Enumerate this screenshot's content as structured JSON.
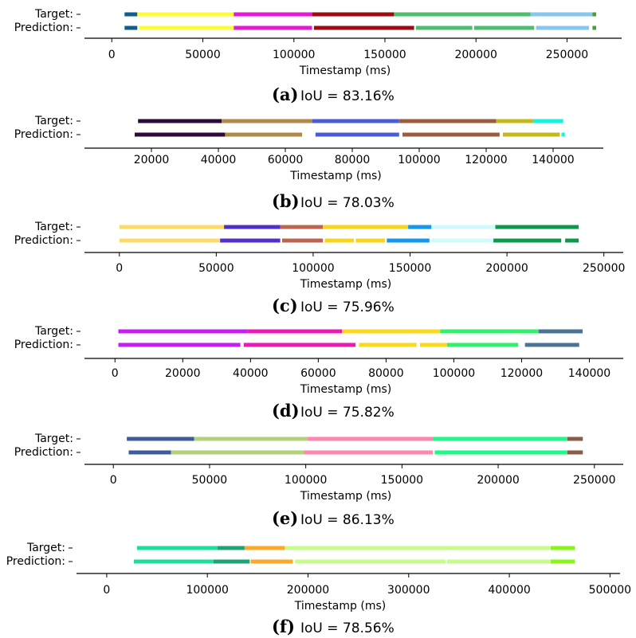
{
  "chart_data": [
    {
      "type": "bar",
      "subtype": "segmented-timeline",
      "rows": [
        "Target:",
        "Prediction:"
      ],
      "xlabel": "Timestamp (ms)",
      "xlim": [
        -15000,
        280000
      ],
      "ticks": [
        0,
        50000,
        100000,
        150000,
        200000,
        250000
      ],
      "caption_letter": "(a)",
      "caption_text": "IoU = 83.16%",
      "target": [
        {
          "start": 7000,
          "end": 14000,
          "color": "#0f5e8e"
        },
        {
          "start": 14000,
          "end": 67000,
          "color": "#fbfb39"
        },
        {
          "start": 67000,
          "end": 110000,
          "color": "#e21ad2"
        },
        {
          "start": 110000,
          "end": 155000,
          "color": "#9a0b12"
        },
        {
          "start": 155000,
          "end": 230000,
          "color": "#4dbe6d"
        },
        {
          "start": 230000,
          "end": 264000,
          "color": "#86c7f0"
        },
        {
          "start": 264000,
          "end": 266000,
          "color": "#4e9e2c"
        }
      ],
      "prediction": [
        {
          "start": 7000,
          "end": 14000,
          "color": "#0f5e8e"
        },
        {
          "start": 15000,
          "end": 67000,
          "color": "#fbfb39"
        },
        {
          "start": 67000,
          "end": 110000,
          "color": "#e21ad2"
        },
        {
          "start": 111000,
          "end": 166000,
          "color": "#9a0b12"
        },
        {
          "start": 167000,
          "end": 198000,
          "color": "#4dbe6d"
        },
        {
          "start": 199000,
          "end": 232000,
          "color": "#4dbe6d"
        },
        {
          "start": 233000,
          "end": 262000,
          "color": "#86c7f0"
        },
        {
          "start": 264000,
          "end": 266000,
          "color": "#4e9e2c"
        }
      ]
    },
    {
      "type": "bar",
      "subtype": "segmented-timeline",
      "rows": [
        "Target:",
        "Prediction:"
      ],
      "xlabel": "Timestamp (ms)",
      "xlim": [
        0,
        155000
      ],
      "ticks": [
        20000,
        40000,
        60000,
        80000,
        100000,
        120000,
        140000
      ],
      "caption_letter": "(b)",
      "caption_text": "IoU = 78.03%",
      "target": [
        {
          "start": 16000,
          "end": 41000,
          "color": "#2e0a3c"
        },
        {
          "start": 41000,
          "end": 68000,
          "color": "#b18a48"
        },
        {
          "start": 68000,
          "end": 94000,
          "color": "#4b5bd6"
        },
        {
          "start": 94000,
          "end": 123000,
          "color": "#9c5d3e"
        },
        {
          "start": 123000,
          "end": 134000,
          "color": "#c4b81b"
        },
        {
          "start": 134000,
          "end": 143000,
          "color": "#12f4df"
        }
      ],
      "prediction": [
        {
          "start": 15000,
          "end": 42000,
          "color": "#2e0a3c"
        },
        {
          "start": 42000,
          "end": 65000,
          "color": "#b18a48"
        },
        {
          "start": 69000,
          "end": 94000,
          "color": "#4b5bd6"
        },
        {
          "start": 95000,
          "end": 124000,
          "color": "#9c5d3e"
        },
        {
          "start": 125000,
          "end": 142000,
          "color": "#c4b81b"
        },
        {
          "start": 142500,
          "end": 143500,
          "color": "#12f4df"
        }
      ]
    },
    {
      "type": "bar",
      "subtype": "segmented-timeline",
      "rows": [
        "Target:",
        "Prediction:"
      ],
      "xlabel": "Timestamp (ms)",
      "xlim": [
        -18000,
        260000
      ],
      "ticks": [
        0,
        50000,
        100000,
        150000,
        200000,
        250000
      ],
      "caption_letter": "(c)",
      "caption_text": "IoU = 75.96%",
      "target": [
        {
          "start": 0,
          "end": 54000,
          "color": "#fbdc6a"
        },
        {
          "start": 54000,
          "end": 83000,
          "color": "#5130c8"
        },
        {
          "start": 83000,
          "end": 105000,
          "color": "#bd6451"
        },
        {
          "start": 105000,
          "end": 149000,
          "color": "#f7d51f"
        },
        {
          "start": 149000,
          "end": 161000,
          "color": "#1597ed"
        },
        {
          "start": 161000,
          "end": 194000,
          "color": "#d1fafc"
        },
        {
          "start": 194000,
          "end": 237000,
          "color": "#0d994c"
        }
      ],
      "prediction": [
        {
          "start": 0,
          "end": 52000,
          "color": "#fbdc6a"
        },
        {
          "start": 52000,
          "end": 83000,
          "color": "#5130c8"
        },
        {
          "start": 84000,
          "end": 105000,
          "color": "#bd6451"
        },
        {
          "start": 106000,
          "end": 121000,
          "color": "#f7d51f"
        },
        {
          "start": 122000,
          "end": 137000,
          "color": "#f7d51f"
        },
        {
          "start": 138000,
          "end": 160000,
          "color": "#1597ed"
        },
        {
          "start": 161000,
          "end": 193000,
          "color": "#d1fafc"
        },
        {
          "start": 193000,
          "end": 228000,
          "color": "#0d994c"
        },
        {
          "start": 230000,
          "end": 237000,
          "color": "#0d994c"
        }
      ]
    },
    {
      "type": "bar",
      "subtype": "segmented-timeline",
      "rows": [
        "Target:",
        "Prediction:"
      ],
      "xlabel": "Timestamp (ms)",
      "xlim": [
        -9000,
        150000
      ],
      "ticks": [
        0,
        20000,
        40000,
        60000,
        80000,
        100000,
        120000,
        140000
      ],
      "caption_letter": "(d)",
      "caption_text": "IoU = 75.82%",
      "target": [
        {
          "start": 1000,
          "end": 39000,
          "color": "#c41df6"
        },
        {
          "start": 39000,
          "end": 67000,
          "color": "#ea1ab4"
        },
        {
          "start": 67000,
          "end": 96000,
          "color": "#fad91d"
        },
        {
          "start": 96000,
          "end": 125000,
          "color": "#31f06d"
        },
        {
          "start": 125000,
          "end": 138000,
          "color": "#4a7396"
        }
      ],
      "prediction": [
        {
          "start": 1000,
          "end": 37000,
          "color": "#c41df6"
        },
        {
          "start": 38000,
          "end": 71000,
          "color": "#ea1ab4"
        },
        {
          "start": 72000,
          "end": 89000,
          "color": "#fad91d"
        },
        {
          "start": 90000,
          "end": 98000,
          "color": "#fad91d"
        },
        {
          "start": 98000,
          "end": 119000,
          "color": "#31f06d"
        },
        {
          "start": 121000,
          "end": 137000,
          "color": "#4a7396"
        }
      ]
    },
    {
      "type": "bar",
      "subtype": "segmented-timeline",
      "rows": [
        "Target:",
        "Prediction:"
      ],
      "xlabel": "Timestamp (ms)",
      "xlim": [
        -15000,
        265000
      ],
      "ticks": [
        0,
        50000,
        100000,
        150000,
        200000,
        250000
      ],
      "caption_letter": "(e)",
      "caption_text": "IoU = 86.13%",
      "target": [
        {
          "start": 7000,
          "end": 42000,
          "color": "#3e5d98"
        },
        {
          "start": 42000,
          "end": 101000,
          "color": "#b2d27a"
        },
        {
          "start": 101000,
          "end": 166000,
          "color": "#fc89ac"
        },
        {
          "start": 166000,
          "end": 236000,
          "color": "#1dfb86"
        },
        {
          "start": 236000,
          "end": 244000,
          "color": "#8e5b48"
        }
      ],
      "prediction": [
        {
          "start": 8000,
          "end": 30000,
          "color": "#3e5d98"
        },
        {
          "start": 30000,
          "end": 99000,
          "color": "#b2d27a"
        },
        {
          "start": 99000,
          "end": 166000,
          "color": "#fc89ac"
        },
        {
          "start": 167000,
          "end": 236000,
          "color": "#1dfb86"
        },
        {
          "start": 236000,
          "end": 244000,
          "color": "#8e5b48"
        }
      ]
    },
    {
      "type": "bar",
      "subtype": "segmented-timeline",
      "rows": [
        "Target:",
        "Prediction:"
      ],
      "xlabel": "Timestamp (ms)",
      "xlim": [
        -30000,
        510000
      ],
      "ticks": [
        0,
        100000,
        200000,
        300000,
        400000,
        500000
      ],
      "caption_letter": "(f)",
      "caption_text": "IoU = 78.56%",
      "target": [
        {
          "start": 30000,
          "end": 110000,
          "color": "#1dde9b"
        },
        {
          "start": 110000,
          "end": 137000,
          "color": "#20a373"
        },
        {
          "start": 137000,
          "end": 177000,
          "color": "#fba82b"
        },
        {
          "start": 177000,
          "end": 441000,
          "color": "#c8fc8a"
        },
        {
          "start": 441000,
          "end": 465000,
          "color": "#87f719"
        }
      ],
      "prediction": [
        {
          "start": 27000,
          "end": 106000,
          "color": "#1dde9b"
        },
        {
          "start": 106000,
          "end": 142000,
          "color": "#20a373"
        },
        {
          "start": 143000,
          "end": 185000,
          "color": "#fba82b"
        },
        {
          "start": 187000,
          "end": 337000,
          "color": "#c8fc8a"
        },
        {
          "start": 338000,
          "end": 441000,
          "color": "#c8fc8a"
        },
        {
          "start": 441000,
          "end": 465000,
          "color": "#87f719"
        }
      ]
    }
  ]
}
